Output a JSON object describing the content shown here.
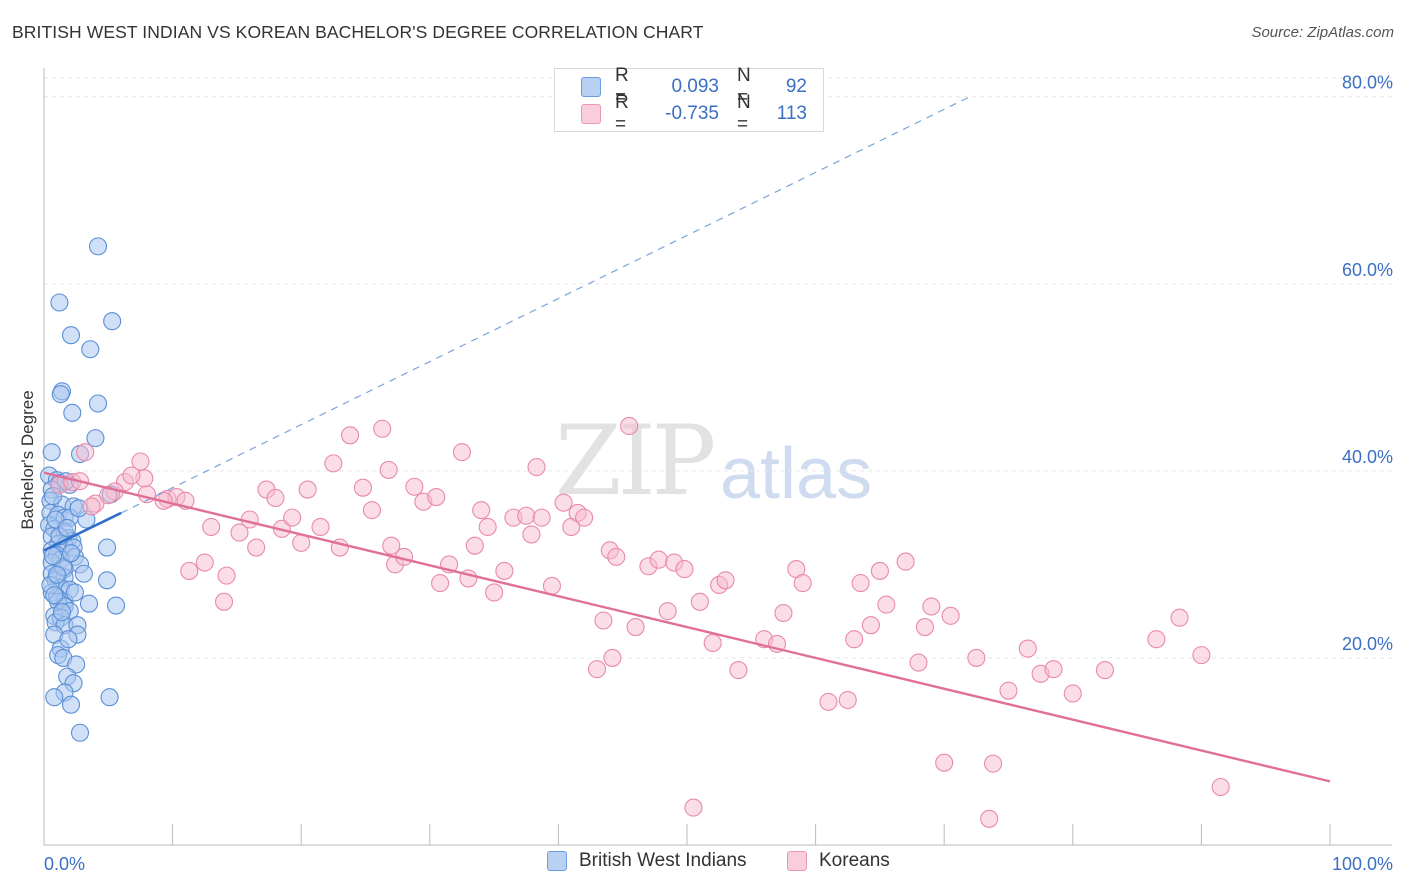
{
  "header": {
    "title": "BRITISH WEST INDIAN VS KOREAN BACHELOR'S DEGREE CORRELATION CHART",
    "source": "Source: ZipAtlas.com"
  },
  "watermark": {
    "zip": "ZIP",
    "atlas": "atlas"
  },
  "legend_top": {
    "rows": [
      {
        "r_label": "R =",
        "r_value": "0.093",
        "n_label": "N =",
        "n_value": "92"
      },
      {
        "r_label": "R =",
        "r_value": "-0.735",
        "n_label": "N =",
        "n_value": "113"
      }
    ]
  },
  "legend_bottom": {
    "items": [
      {
        "label": "British West Indians"
      },
      {
        "label": "Koreans"
      }
    ]
  },
  "colors": {
    "bwi_fill": "#a9c6ef",
    "bwi_stroke": "#5b8fd6",
    "bwi_line": "#2f6fcc",
    "kor_fill": "#f7bcd0",
    "kor_stroke": "#e98aab",
    "kor_line": "#e0709a",
    "grid": "#e6e6e6",
    "tick_label": "#3a6fc4"
  },
  "chart_data": {
    "type": "scatter",
    "title": "BRITISH WEST INDIAN VS KOREAN BACHELOR'S DEGREE CORRELATION CHART",
    "xlabel": "",
    "ylabel": "Bachelor's Degree",
    "xlim": [
      0,
      100
    ],
    "ylim": [
      0,
      82
    ],
    "x_tick_labels": [
      "0.0%",
      "100.0%"
    ],
    "y_ticks": [
      20,
      40,
      60,
      80
    ],
    "y_tick_labels": [
      "20.0%",
      "40.0%",
      "60.0%",
      "80.0%"
    ],
    "grid": true,
    "legend_position": "bottom",
    "series": [
      {
        "name": "British West Indians",
        "r": 0.093,
        "n": 92,
        "trend_solid": {
          "x": [
            0,
            6.0
          ],
          "y": [
            31.5,
            35.5
          ]
        },
        "trend_dashed": {
          "x": [
            6.0,
            72.0
          ],
          "y": [
            35.5,
            80.0
          ]
        },
        "points": [
          [
            4.2,
            64.0
          ],
          [
            1.2,
            58.0
          ],
          [
            5.3,
            56.0
          ],
          [
            2.1,
            54.5
          ],
          [
            3.6,
            53.0
          ],
          [
            1.4,
            48.5
          ],
          [
            1.3,
            48.2
          ],
          [
            4.2,
            47.2
          ],
          [
            2.2,
            46.2
          ],
          [
            4.0,
            43.5
          ],
          [
            0.6,
            42.0
          ],
          [
            2.8,
            41.8
          ],
          [
            0.4,
            39.5
          ],
          [
            1.0,
            39.0
          ],
          [
            1.2,
            38.7
          ],
          [
            2.0,
            38.5
          ],
          [
            0.6,
            38.0
          ],
          [
            5.2,
            37.5
          ],
          [
            0.5,
            36.8
          ],
          [
            1.4,
            36.4
          ],
          [
            2.3,
            36.2
          ],
          [
            0.5,
            35.5
          ],
          [
            1.1,
            35.3
          ],
          [
            1.6,
            35.0
          ],
          [
            2.0,
            35.0
          ],
          [
            3.3,
            34.8
          ],
          [
            0.4,
            34.2
          ],
          [
            0.8,
            33.8
          ],
          [
            1.6,
            33.5
          ],
          [
            0.6,
            33.0
          ],
          [
            1.9,
            32.8
          ],
          [
            2.2,
            32.5
          ],
          [
            1.1,
            32.2
          ],
          [
            1.6,
            32.0
          ],
          [
            2.3,
            31.8
          ],
          [
            0.6,
            31.5
          ],
          [
            4.9,
            31.8
          ],
          [
            1.0,
            31.0
          ],
          [
            2.4,
            30.8
          ],
          [
            1.3,
            30.5
          ],
          [
            0.6,
            30.2
          ],
          [
            2.8,
            30.0
          ],
          [
            1.6,
            29.5
          ],
          [
            0.6,
            29.0
          ],
          [
            1.1,
            28.8
          ],
          [
            3.1,
            29.0
          ],
          [
            1.6,
            28.6
          ],
          [
            0.9,
            28.3
          ],
          [
            4.9,
            28.3
          ],
          [
            1.3,
            27.5
          ],
          [
            2.0,
            27.3
          ],
          [
            0.6,
            27.0
          ],
          [
            1.0,
            26.5
          ],
          [
            1.6,
            26.0
          ],
          [
            1.1,
            26.0
          ],
          [
            3.5,
            25.8
          ],
          [
            5.6,
            25.6
          ],
          [
            1.6,
            25.5
          ],
          [
            2.0,
            25.0
          ],
          [
            0.8,
            24.5
          ],
          [
            1.3,
            24.3
          ],
          [
            0.9,
            23.8
          ],
          [
            1.6,
            23.5
          ],
          [
            2.6,
            23.5
          ],
          [
            0.8,
            22.5
          ],
          [
            2.6,
            22.5
          ],
          [
            1.3,
            21.0
          ],
          [
            1.1,
            20.3
          ],
          [
            1.5,
            20.0
          ],
          [
            2.5,
            19.3
          ],
          [
            1.8,
            18.0
          ],
          [
            2.3,
            17.3
          ],
          [
            1.6,
            16.3
          ],
          [
            0.8,
            15.8
          ],
          [
            5.1,
            15.8
          ],
          [
            2.1,
            15.0
          ],
          [
            2.8,
            12.0
          ],
          [
            1.9,
            22.0
          ],
          [
            0.7,
            37.3
          ],
          [
            1.5,
            29.7
          ],
          [
            0.9,
            34.8
          ],
          [
            2.7,
            36.0
          ],
          [
            1.2,
            33.0
          ],
          [
            0.5,
            27.8
          ],
          [
            1.7,
            38.9
          ],
          [
            0.8,
            26.7
          ],
          [
            1.4,
            24.9
          ],
          [
            2.1,
            31.2
          ],
          [
            0.7,
            30.9
          ],
          [
            1.8,
            33.9
          ],
          [
            1.0,
            28.9
          ],
          [
            2.4,
            27.0
          ]
        ]
      },
      {
        "name": "Koreans",
        "r": -0.735,
        "n": 113,
        "trend": {
          "x": [
            0,
            100
          ],
          "y": [
            39.8,
            6.8
          ]
        },
        "points": [
          [
            1.2,
            38.5
          ],
          [
            2.2,
            38.8
          ],
          [
            3.2,
            42.0
          ],
          [
            7.5,
            41.0
          ],
          [
            6.3,
            38.8
          ],
          [
            8.0,
            37.5
          ],
          [
            9.6,
            37.0
          ],
          [
            4.0,
            36.5
          ],
          [
            5.5,
            37.8
          ],
          [
            7.8,
            39.2
          ],
          [
            10.3,
            37.2
          ],
          [
            13.0,
            34.0
          ],
          [
            9.3,
            36.8
          ],
          [
            11.3,
            29.3
          ],
          [
            12.5,
            30.2
          ],
          [
            14.2,
            28.8
          ],
          [
            14.0,
            26.0
          ],
          [
            16.0,
            34.8
          ],
          [
            16.5,
            31.8
          ],
          [
            17.3,
            38.0
          ],
          [
            18.5,
            33.8
          ],
          [
            19.3,
            35.0
          ],
          [
            20.0,
            32.3
          ],
          [
            20.5,
            38.0
          ],
          [
            21.5,
            34.0
          ],
          [
            22.5,
            40.8
          ],
          [
            23.0,
            31.8
          ],
          [
            23.8,
            43.8
          ],
          [
            24.8,
            38.2
          ],
          [
            25.5,
            35.8
          ],
          [
            26.3,
            44.5
          ],
          [
            27.0,
            32.0
          ],
          [
            27.3,
            30.0
          ],
          [
            28.0,
            30.8
          ],
          [
            28.8,
            38.3
          ],
          [
            29.5,
            36.7
          ],
          [
            30.5,
            37.2
          ],
          [
            30.8,
            28.0
          ],
          [
            31.5,
            30.0
          ],
          [
            32.5,
            42.0
          ],
          [
            33.0,
            28.5
          ],
          [
            33.5,
            32.0
          ],
          [
            34.0,
            35.8
          ],
          [
            34.5,
            34.0
          ],
          [
            35.0,
            27.0
          ],
          [
            35.8,
            29.3
          ],
          [
            36.5,
            35.0
          ],
          [
            37.5,
            35.2
          ],
          [
            38.3,
            40.4
          ],
          [
            38.7,
            35.0
          ],
          [
            39.5,
            27.7
          ],
          [
            41.0,
            34.0
          ],
          [
            41.5,
            35.5
          ],
          [
            42.0,
            35.0
          ],
          [
            43.0,
            18.8
          ],
          [
            43.5,
            24.0
          ],
          [
            44.0,
            31.5
          ],
          [
            44.5,
            30.8
          ],
          [
            44.2,
            20.0
          ],
          [
            45.5,
            44.8
          ],
          [
            46.0,
            23.3
          ],
          [
            47.0,
            29.8
          ],
          [
            47.8,
            30.5
          ],
          [
            48.5,
            25.0
          ],
          [
            49.0,
            30.2
          ],
          [
            49.8,
            29.5
          ],
          [
            50.5,
            4.0
          ],
          [
            51.0,
            26.0
          ],
          [
            52.0,
            21.6
          ],
          [
            52.5,
            27.8
          ],
          [
            53.0,
            28.3
          ],
          [
            54.0,
            18.7
          ],
          [
            56.0,
            22.0
          ],
          [
            57.0,
            21.5
          ],
          [
            57.5,
            24.8
          ],
          [
            58.5,
            29.5
          ],
          [
            59.0,
            28.0
          ],
          [
            61.0,
            15.3
          ],
          [
            62.5,
            15.5
          ],
          [
            63.0,
            22.0
          ],
          [
            63.5,
            28.0
          ],
          [
            64.3,
            23.5
          ],
          [
            65.0,
            29.3
          ],
          [
            65.5,
            25.7
          ],
          [
            67.0,
            30.3
          ],
          [
            68.0,
            19.5
          ],
          [
            68.5,
            23.3
          ],
          [
            69.0,
            25.5
          ],
          [
            70.0,
            8.8
          ],
          [
            70.5,
            24.5
          ],
          [
            72.5,
            20.0
          ],
          [
            73.5,
            2.8
          ],
          [
            73.8,
            8.7
          ],
          [
            75.0,
            16.5
          ],
          [
            76.5,
            21.0
          ],
          [
            77.5,
            18.3
          ],
          [
            78.5,
            18.8
          ],
          [
            80.0,
            16.2
          ],
          [
            82.5,
            18.7
          ],
          [
            86.5,
            22.0
          ],
          [
            88.3,
            24.3
          ],
          [
            90.0,
            20.3
          ],
          [
            91.5,
            6.2
          ],
          [
            6.8,
            39.5
          ],
          [
            2.8,
            38.9
          ],
          [
            5.0,
            37.4
          ],
          [
            11.0,
            36.8
          ],
          [
            15.2,
            33.4
          ],
          [
            26.8,
            40.1
          ],
          [
            37.9,
            33.2
          ],
          [
            18.0,
            37.1
          ],
          [
            3.7,
            36.2
          ],
          [
            40.4,
            36.6
          ]
        ]
      }
    ]
  }
}
